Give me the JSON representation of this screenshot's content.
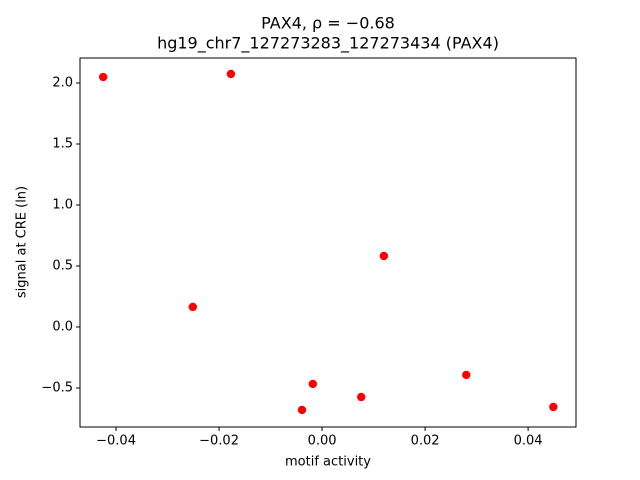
{
  "chart_data": {
    "type": "scatter",
    "title": "PAX4, ρ = −0.68",
    "subtitle": "hg19_chr7_127273283_127273434 (PAX4)",
    "x_label": "motif activity",
    "y_label": "signal at CRE (ln)",
    "color": "#ff0000",
    "x": [
      -0.0425,
      -0.0177,
      -0.0251,
      0.012,
      -0.0018,
      -0.0039,
      0.0076,
      0.028,
      0.0449
    ],
    "values": [
      2.049,
      2.074,
      0.164,
      0.582,
      -0.467,
      -0.68,
      -0.574,
      -0.393,
      -0.656
    ],
    "xlim": [
      -0.047,
      0.0493
    ],
    "ylim": [
      -0.82,
      2.205
    ],
    "xticks": [
      {
        "value": -0.04,
        "label": "−0.04"
      },
      {
        "value": -0.02,
        "label": "−0.02"
      },
      {
        "value": 0,
        "label": "0.00"
      },
      {
        "value": 0.02,
        "label": "0.02"
      },
      {
        "value": 0.04,
        "label": "0.04"
      }
    ],
    "yticks": [
      {
        "value": -0.5,
        "label": "−0.5"
      },
      {
        "value": 0,
        "label": "0.0"
      },
      0.5,
      {
        "value": 1,
        "label": "1.0"
      },
      1.5,
      {
        "value": 2,
        "label": "2.0"
      }
    ]
  }
}
